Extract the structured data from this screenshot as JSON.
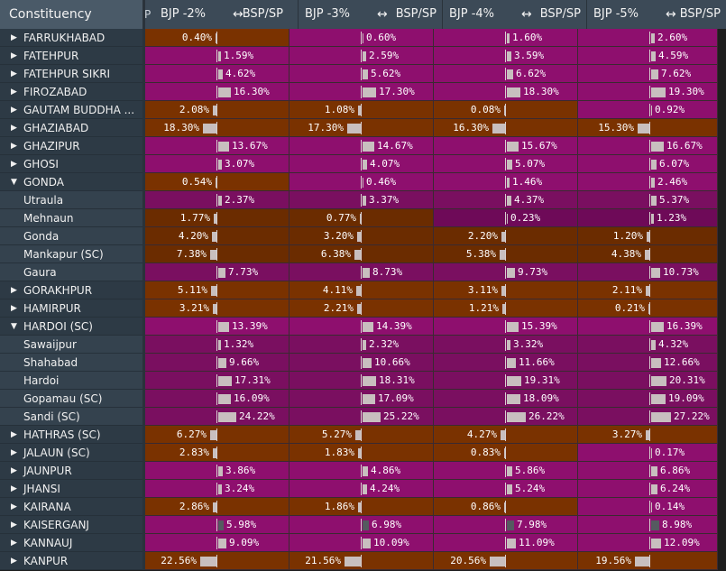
{
  "header": {
    "constituency": "Constituency",
    "grip": "P",
    "columns": [
      {
        "left": "BJP -2%",
        "arrow": "↔",
        "right": "BSP/SP"
      },
      {
        "left": "BJP -3%",
        "arrow": "↔",
        "right": "BSP/SP"
      },
      {
        "left": "BJP -4%",
        "arrow": "↔",
        "right": "BSP/SP"
      },
      {
        "left": "BJP -5%",
        "arrow": "↔",
        "right": "BSP/SP"
      }
    ]
  },
  "colors": {
    "bjp": "#7a3200",
    "bsp_sp": "#8e0f6e",
    "bjp_child": "#6b2c00",
    "bsp_sp_child": "#7a0f60",
    "bsp_sp_dim": "#6e0a58"
  },
  "rows": [
    {
      "name": "FARRUKHABAD",
      "level": 0,
      "caret": "right",
      "cells": [
        {
          "side": "L",
          "val": "0.40%",
          "c": "bjp"
        },
        {
          "side": "R",
          "val": "0.60%",
          "c": "bsp_sp"
        },
        {
          "side": "R",
          "val": "1.60%",
          "c": "bsp_sp"
        },
        {
          "side": "R",
          "val": "2.60%",
          "c": "bsp_sp"
        }
      ]
    },
    {
      "name": "FATEHPUR",
      "level": 0,
      "caret": "right",
      "cells": [
        {
          "side": "R",
          "val": "1.59%",
          "c": "bsp_sp"
        },
        {
          "side": "R",
          "val": "2.59%",
          "c": "bsp_sp"
        },
        {
          "side": "R",
          "val": "3.59%",
          "c": "bsp_sp"
        },
        {
          "side": "R",
          "val": "4.59%",
          "c": "bsp_sp"
        }
      ]
    },
    {
      "name": "FATEHPUR SIKRI",
      "level": 0,
      "caret": "right",
      "cells": [
        {
          "side": "R",
          "val": "4.62%",
          "c": "bsp_sp"
        },
        {
          "side": "R",
          "val": "5.62%",
          "c": "bsp_sp"
        },
        {
          "side": "R",
          "val": "6.62%",
          "c": "bsp_sp"
        },
        {
          "side": "R",
          "val": "7.62%",
          "c": "bsp_sp"
        }
      ]
    },
    {
      "name": "FIROZABAD",
      "level": 0,
      "caret": "right",
      "cells": [
        {
          "side": "R",
          "val": "16.30%",
          "c": "bsp_sp"
        },
        {
          "side": "R",
          "val": "17.30%",
          "c": "bsp_sp"
        },
        {
          "side": "R",
          "val": "18.30%",
          "c": "bsp_sp"
        },
        {
          "side": "R",
          "val": "19.30%",
          "c": "bsp_sp"
        }
      ]
    },
    {
      "name": "GAUTAM BUDDHA ...",
      "level": 0,
      "caret": "right",
      "cells": [
        {
          "side": "L",
          "val": "2.08%",
          "c": "bjp"
        },
        {
          "side": "L",
          "val": "1.08%",
          "c": "bjp"
        },
        {
          "side": "L",
          "val": "0.08%",
          "c": "bjp"
        },
        {
          "side": "R",
          "val": "0.92%",
          "c": "bsp_sp"
        }
      ]
    },
    {
      "name": "GHAZIABAD",
      "level": 0,
      "caret": "right",
      "cells": [
        {
          "side": "L",
          "val": "18.30%",
          "c": "bjp"
        },
        {
          "side": "L",
          "val": "17.30%",
          "c": "bjp"
        },
        {
          "side": "L",
          "val": "16.30%",
          "c": "bjp"
        },
        {
          "side": "L",
          "val": "15.30%",
          "c": "bjp"
        }
      ]
    },
    {
      "name": "GHAZIPUR",
      "level": 0,
      "caret": "right",
      "cells": [
        {
          "side": "R",
          "val": "13.67%",
          "c": "bsp_sp"
        },
        {
          "side": "R",
          "val": "14.67%",
          "c": "bsp_sp"
        },
        {
          "side": "R",
          "val": "15.67%",
          "c": "bsp_sp"
        },
        {
          "side": "R",
          "val": "16.67%",
          "c": "bsp_sp"
        }
      ]
    },
    {
      "name": "GHOSI",
      "level": 0,
      "caret": "right",
      "cells": [
        {
          "side": "R",
          "val": "3.07%",
          "c": "bsp_sp"
        },
        {
          "side": "R",
          "val": "4.07%",
          "c": "bsp_sp"
        },
        {
          "side": "R",
          "val": "5.07%",
          "c": "bsp_sp"
        },
        {
          "side": "R",
          "val": "6.07%",
          "c": "bsp_sp"
        }
      ]
    },
    {
      "name": "GONDA",
      "level": 0,
      "caret": "down",
      "cells": [
        {
          "side": "L",
          "val": "0.54%",
          "c": "bjp"
        },
        {
          "side": "R",
          "val": "0.46%",
          "c": "bsp_sp"
        },
        {
          "side": "R",
          "val": "1.46%",
          "c": "bsp_sp"
        },
        {
          "side": "R",
          "val": "2.46%",
          "c": "bsp_sp"
        }
      ]
    },
    {
      "name": "Utraula",
      "level": 1,
      "caret": "",
      "cells": [
        {
          "side": "R",
          "val": "2.37%",
          "c": "bsp_sp_child"
        },
        {
          "side": "R",
          "val": "3.37%",
          "c": "bsp_sp_child"
        },
        {
          "side": "R",
          "val": "4.37%",
          "c": "bsp_sp_child"
        },
        {
          "side": "R",
          "val": "5.37%",
          "c": "bsp_sp_child"
        }
      ]
    },
    {
      "name": "Mehnaun",
      "level": 1,
      "caret": "",
      "cells": [
        {
          "side": "L",
          "val": "1.77%",
          "c": "bjp_child"
        },
        {
          "side": "L",
          "val": "0.77%",
          "c": "bjp_child"
        },
        {
          "side": "R",
          "val": "0.23%",
          "c": "bsp_sp_dim"
        },
        {
          "side": "R",
          "val": "1.23%",
          "c": "bsp_sp_dim"
        }
      ]
    },
    {
      "name": "Gonda",
      "level": 1,
      "caret": "",
      "cells": [
        {
          "side": "L",
          "val": "4.20%",
          "c": "bjp_child"
        },
        {
          "side": "L",
          "val": "3.20%",
          "c": "bjp_child"
        },
        {
          "side": "L",
          "val": "2.20%",
          "c": "bjp_child"
        },
        {
          "side": "L",
          "val": "1.20%",
          "c": "bjp_child"
        }
      ]
    },
    {
      "name": "Mankapur (SC)",
      "level": 1,
      "caret": "",
      "cells": [
        {
          "side": "L",
          "val": "7.38%",
          "c": "bjp_child"
        },
        {
          "side": "L",
          "val": "6.38%",
          "c": "bjp_child"
        },
        {
          "side": "L",
          "val": "5.38%",
          "c": "bjp_child"
        },
        {
          "side": "L",
          "val": "4.38%",
          "c": "bjp_child"
        }
      ]
    },
    {
      "name": "Gaura",
      "level": 1,
      "caret": "",
      "cells": [
        {
          "side": "R",
          "val": "7.73%",
          "c": "bsp_sp_child"
        },
        {
          "side": "R",
          "val": "8.73%",
          "c": "bsp_sp_child"
        },
        {
          "side": "R",
          "val": "9.73%",
          "c": "bsp_sp_child"
        },
        {
          "side": "R",
          "val": "10.73%",
          "c": "bsp_sp_child"
        }
      ]
    },
    {
      "name": "GORAKHPUR",
      "level": 0,
      "caret": "right",
      "cells": [
        {
          "side": "L",
          "val": "5.11%",
          "c": "bjp"
        },
        {
          "side": "L",
          "val": "4.11%",
          "c": "bjp"
        },
        {
          "side": "L",
          "val": "3.11%",
          "c": "bjp"
        },
        {
          "side": "L",
          "val": "2.11%",
          "c": "bjp"
        }
      ]
    },
    {
      "name": "HAMIRPUR",
      "level": 0,
      "caret": "right",
      "cells": [
        {
          "side": "L",
          "val": "3.21%",
          "c": "bjp"
        },
        {
          "side": "L",
          "val": "2.21%",
          "c": "bjp"
        },
        {
          "side": "L",
          "val": "1.21%",
          "c": "bjp"
        },
        {
          "side": "L",
          "val": "0.21%",
          "c": "bjp"
        }
      ]
    },
    {
      "name": "HARDOI (SC)",
      "level": 0,
      "caret": "down",
      "cells": [
        {
          "side": "R",
          "val": "13.39%",
          "c": "bsp_sp"
        },
        {
          "side": "R",
          "val": "14.39%",
          "c": "bsp_sp"
        },
        {
          "side": "R",
          "val": "15.39%",
          "c": "bsp_sp"
        },
        {
          "side": "R",
          "val": "16.39%",
          "c": "bsp_sp"
        }
      ]
    },
    {
      "name": "Sawaijpur",
      "level": 1,
      "caret": "",
      "cells": [
        {
          "side": "R",
          "val": "1.32%",
          "c": "bsp_sp_child"
        },
        {
          "side": "R",
          "val": "2.32%",
          "c": "bsp_sp_child"
        },
        {
          "side": "R",
          "val": "3.32%",
          "c": "bsp_sp_child"
        },
        {
          "side": "R",
          "val": "4.32%",
          "c": "bsp_sp_child"
        }
      ]
    },
    {
      "name": "Shahabad",
      "level": 1,
      "caret": "",
      "cells": [
        {
          "side": "R",
          "val": "9.66%",
          "c": "bsp_sp_child"
        },
        {
          "side": "R",
          "val": "10.66%",
          "c": "bsp_sp_child"
        },
        {
          "side": "R",
          "val": "11.66%",
          "c": "bsp_sp_child"
        },
        {
          "side": "R",
          "val": "12.66%",
          "c": "bsp_sp_child"
        }
      ]
    },
    {
      "name": "Hardoi",
      "level": 1,
      "caret": "",
      "cells": [
        {
          "side": "R",
          "val": "17.31%",
          "c": "bsp_sp_child"
        },
        {
          "side": "R",
          "val": "18.31%",
          "c": "bsp_sp_child"
        },
        {
          "side": "R",
          "val": "19.31%",
          "c": "bsp_sp_child"
        },
        {
          "side": "R",
          "val": "20.31%",
          "c": "bsp_sp_child"
        }
      ]
    },
    {
      "name": "Gopamau (SC)",
      "level": 1,
      "caret": "",
      "cells": [
        {
          "side": "R",
          "val": "16.09%",
          "c": "bsp_sp_child"
        },
        {
          "side": "R",
          "val": "17.09%",
          "c": "bsp_sp_child"
        },
        {
          "side": "R",
          "val": "18.09%",
          "c": "bsp_sp_child"
        },
        {
          "side": "R",
          "val": "19.09%",
          "c": "bsp_sp_child"
        }
      ]
    },
    {
      "name": "Sandi (SC)",
      "level": 1,
      "caret": "",
      "cells": [
        {
          "side": "R",
          "val": "24.22%",
          "c": "bsp_sp_child"
        },
        {
          "side": "R",
          "val": "25.22%",
          "c": "bsp_sp_child"
        },
        {
          "side": "R",
          "val": "26.22%",
          "c": "bsp_sp_child"
        },
        {
          "side": "R",
          "val": "27.22%",
          "c": "bsp_sp_child"
        }
      ]
    },
    {
      "name": "HATHRAS (SC)",
      "level": 0,
      "caret": "right",
      "cells": [
        {
          "side": "L",
          "val": "6.27%",
          "c": "bjp"
        },
        {
          "side": "L",
          "val": "5.27%",
          "c": "bjp"
        },
        {
          "side": "L",
          "val": "4.27%",
          "c": "bjp"
        },
        {
          "side": "L",
          "val": "3.27%",
          "c": "bjp"
        }
      ]
    },
    {
      "name": "JALAUN (SC)",
      "level": 0,
      "caret": "right",
      "cells": [
        {
          "side": "L",
          "val": "2.83%",
          "c": "bjp"
        },
        {
          "side": "L",
          "val": "1.83%",
          "c": "bjp"
        },
        {
          "side": "L",
          "val": "0.83%",
          "c": "bjp"
        },
        {
          "side": "R",
          "val": "0.17%",
          "c": "bsp_sp"
        }
      ]
    },
    {
      "name": "JAUNPUR",
      "level": 0,
      "caret": "right",
      "cells": [
        {
          "side": "R",
          "val": "3.86%",
          "c": "bsp_sp"
        },
        {
          "side": "R",
          "val": "4.86%",
          "c": "bsp_sp"
        },
        {
          "side": "R",
          "val": "5.86%",
          "c": "bsp_sp"
        },
        {
          "side": "R",
          "val": "6.86%",
          "c": "bsp_sp"
        }
      ]
    },
    {
      "name": "JHANSI",
      "level": 0,
      "caret": "right",
      "cells": [
        {
          "side": "R",
          "val": "3.24%",
          "c": "bsp_sp"
        },
        {
          "side": "R",
          "val": "4.24%",
          "c": "bsp_sp"
        },
        {
          "side": "R",
          "val": "5.24%",
          "c": "bsp_sp"
        },
        {
          "side": "R",
          "val": "6.24%",
          "c": "bsp_sp"
        }
      ]
    },
    {
      "name": "KAIRANA",
      "level": 0,
      "caret": "right",
      "cells": [
        {
          "side": "L",
          "val": "2.86%",
          "c": "bjp"
        },
        {
          "side": "L",
          "val": "1.86%",
          "c": "bjp"
        },
        {
          "side": "L",
          "val": "0.86%",
          "c": "bjp"
        },
        {
          "side": "R",
          "val": "0.14%",
          "c": "bsp_sp"
        }
      ]
    },
    {
      "name": "KAISERGANJ",
      "level": 0,
      "caret": "right",
      "cells": [
        {
          "side": "R",
          "val": "5.98%",
          "c": "bsp_sp",
          "dark": true
        },
        {
          "side": "R",
          "val": "6.98%",
          "c": "bsp_sp",
          "dark": true
        },
        {
          "side": "R",
          "val": "7.98%",
          "c": "bsp_sp",
          "dark": true
        },
        {
          "side": "R",
          "val": "8.98%",
          "c": "bsp_sp",
          "dark": true
        }
      ]
    },
    {
      "name": "KANNAUJ",
      "level": 0,
      "caret": "right",
      "cells": [
        {
          "side": "R",
          "val": "9.09%",
          "c": "bsp_sp"
        },
        {
          "side": "R",
          "val": "10.09%",
          "c": "bsp_sp"
        },
        {
          "side": "R",
          "val": "11.09%",
          "c": "bsp_sp"
        },
        {
          "side": "R",
          "val": "12.09%",
          "c": "bsp_sp"
        }
      ]
    },
    {
      "name": "KANPUR",
      "level": 0,
      "caret": "right",
      "cells": [
        {
          "side": "L",
          "val": "22.56%",
          "c": "bjp"
        },
        {
          "side": "L",
          "val": "21.56%",
          "c": "bjp"
        },
        {
          "side": "L",
          "val": "20.56%",
          "c": "bjp"
        },
        {
          "side": "L",
          "val": "19.56%",
          "c": "bjp"
        }
      ]
    }
  ]
}
